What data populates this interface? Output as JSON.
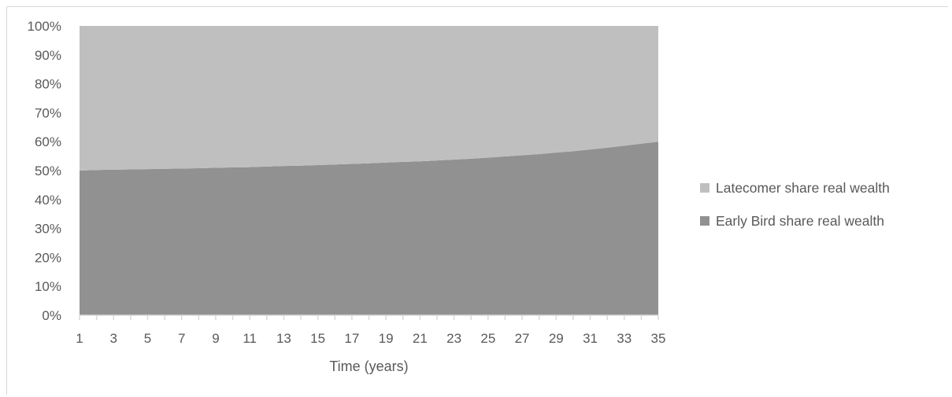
{
  "chart_data": {
    "type": "area",
    "stacked": "percent",
    "xlabel": "Time (years)",
    "ylabel": "",
    "x": [
      1,
      2,
      3,
      4,
      5,
      6,
      7,
      8,
      9,
      10,
      11,
      12,
      13,
      14,
      15,
      16,
      17,
      18,
      19,
      20,
      21,
      22,
      23,
      24,
      25,
      26,
      27,
      28,
      29,
      30,
      31,
      32,
      33,
      34,
      35
    ],
    "x_tick_labels": [
      "1",
      "3",
      "5",
      "7",
      "9",
      "11",
      "13",
      "15",
      "17",
      "19",
      "21",
      "23",
      "25",
      "27",
      "29",
      "31",
      "33",
      "35"
    ],
    "ylim": [
      0,
      100
    ],
    "y_tick_labels": [
      "0%",
      "10%",
      "20%",
      "30%",
      "40%",
      "50%",
      "60%",
      "70%",
      "80%",
      "90%",
      "100%"
    ],
    "legend_position": "right",
    "series": [
      {
        "name": "Early Bird share real wealth",
        "color": "#919191",
        "values": [
          50.0,
          50.2,
          50.3,
          50.4,
          50.5,
          50.6,
          50.7,
          50.8,
          51.0,
          51.1,
          51.2,
          51.4,
          51.6,
          51.7,
          51.9,
          52.1,
          52.3,
          52.5,
          52.8,
          53.0,
          53.2,
          53.5,
          53.8,
          54.1,
          54.5,
          54.9,
          55.3,
          55.7,
          56.2,
          56.7,
          57.3,
          57.9,
          58.6,
          59.3,
          60.0
        ]
      },
      {
        "name": "Latecomer share real wealth",
        "color": "#bfbfbf",
        "values": [
          50.0,
          49.8,
          49.7,
          49.6,
          49.5,
          49.4,
          49.3,
          49.2,
          49.0,
          48.9,
          48.8,
          48.6,
          48.4,
          48.3,
          48.1,
          47.9,
          47.7,
          47.5,
          47.2,
          47.0,
          46.8,
          46.5,
          46.2,
          45.9,
          45.5,
          45.1,
          44.7,
          44.3,
          43.8,
          43.3,
          42.7,
          42.1,
          41.4,
          40.7,
          40.0
        ]
      }
    ],
    "legend_order": [
      1,
      0
    ]
  }
}
